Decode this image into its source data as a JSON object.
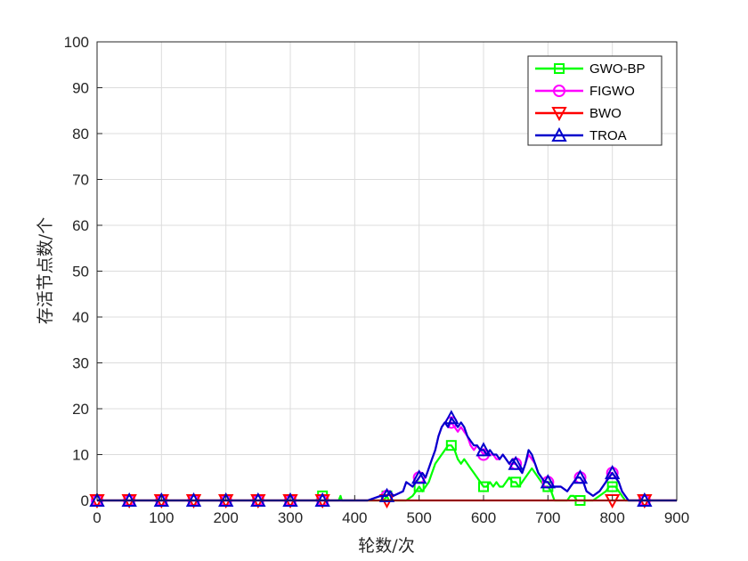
{
  "chart_data": {
    "type": "line",
    "title": "",
    "xlabel": "轮数/次",
    "ylabel": "存活节点数/个",
    "xlim": [
      0,
      900
    ],
    "ylim": [
      0,
      100
    ],
    "grid": true,
    "legend_position": "top-right",
    "x_ticks": [
      "0",
      "100",
      "200",
      "300",
      "400",
      "500",
      "600",
      "700",
      "800",
      "900"
    ],
    "y_ticks": [
      "0",
      "10",
      "20",
      "30",
      "40",
      "50",
      "60",
      "70",
      "80",
      "90",
      "100"
    ],
    "series": [
      {
        "name": "GWO-BP",
        "color": "#00ff00",
        "marker": "square",
        "x": [
          0,
          340,
          345,
          350,
          355,
          360,
          375,
          378,
          380,
          383,
          400,
          445,
          450,
          453,
          480,
          490,
          495,
          500,
          505,
          510,
          515,
          520,
          525,
          530,
          535,
          540,
          545,
          550,
          555,
          560,
          565,
          570,
          575,
          580,
          585,
          590,
          595,
          600,
          605,
          610,
          615,
          620,
          625,
          630,
          635,
          640,
          645,
          650,
          655,
          660,
          665,
          670,
          675,
          680,
          685,
          690,
          695,
          700,
          705,
          710,
          730,
          735,
          740,
          745,
          750,
          770,
          780,
          790,
          795,
          800,
          805,
          810,
          815,
          820,
          825,
          850,
          900
        ],
        "y": [
          0,
          0,
          1,
          1,
          1,
          0,
          0,
          1,
          0,
          0,
          0,
          0,
          1,
          0,
          0,
          1,
          2,
          3,
          2,
          3,
          4,
          6,
          8,
          9,
          10,
          11,
          12,
          12,
          11,
          9,
          8,
          9,
          8,
          7,
          6,
          5,
          4,
          3,
          3,
          4,
          3,
          4,
          3,
          3,
          4,
          5,
          4,
          4,
          3,
          4,
          5,
          6,
          7,
          6,
          5,
          4,
          3,
          3,
          2,
          0,
          0,
          1,
          1,
          0,
          0,
          0,
          1,
          2,
          3,
          3,
          3,
          2,
          1,
          0,
          0,
          0,
          0
        ]
      },
      {
        "name": "FIGWO",
        "color": "#ff00ff",
        "marker": "circle",
        "x": [
          0,
          420,
          440,
          450,
          455,
          460,
          475,
          480,
          490,
          495,
          500,
          505,
          510,
          515,
          520,
          525,
          530,
          535,
          540,
          545,
          550,
          555,
          560,
          565,
          570,
          575,
          580,
          585,
          590,
          595,
          600,
          605,
          610,
          615,
          620,
          625,
          630,
          635,
          640,
          645,
          650,
          655,
          660,
          665,
          670,
          675,
          680,
          685,
          690,
          695,
          700,
          705,
          710,
          720,
          730,
          735,
          740,
          745,
          750,
          755,
          760,
          770,
          780,
          790,
          795,
          800,
          805,
          810,
          815,
          820,
          825,
          850,
          900
        ],
        "y": [
          0,
          0,
          1,
          1,
          2,
          1,
          2,
          4,
          3,
          4,
          5,
          6,
          5,
          7,
          9,
          11,
          14,
          16,
          17,
          16,
          17,
          16,
          15,
          16,
          15,
          14,
          12,
          11,
          12,
          11,
          10,
          11,
          10,
          10,
          9,
          9,
          10,
          9,
          8,
          8,
          8,
          7,
          6,
          8,
          10,
          9,
          8,
          6,
          5,
          4,
          4,
          3,
          3,
          3,
          2,
          3,
          4,
          5,
          5,
          4,
          2,
          1,
          2,
          4,
          6,
          6,
          5,
          4,
          2,
          1,
          0,
          0,
          0
        ]
      },
      {
        "name": "BWO",
        "color": "#ff0000",
        "marker": "triangle-down",
        "x": [
          0,
          900
        ],
        "y": [
          0,
          0
        ]
      },
      {
        "name": "TROA",
        "color": "#0000cc",
        "marker": "triangle-up",
        "x": [
          0,
          420,
          440,
          450,
          455,
          460,
          475,
          480,
          490,
          495,
          500,
          505,
          510,
          515,
          520,
          525,
          530,
          535,
          540,
          545,
          550,
          555,
          560,
          565,
          570,
          575,
          580,
          585,
          590,
          595,
          600,
          605,
          610,
          615,
          620,
          625,
          630,
          635,
          640,
          645,
          650,
          655,
          660,
          665,
          670,
          675,
          680,
          685,
          690,
          695,
          700,
          705,
          710,
          720,
          730,
          735,
          740,
          745,
          750,
          755,
          760,
          770,
          780,
          790,
          795,
          800,
          805,
          810,
          815,
          820,
          825,
          850,
          900
        ],
        "y": [
          0,
          0,
          1,
          1,
          2,
          1,
          2,
          4,
          3,
          4,
          5,
          6,
          5,
          7,
          9,
          11,
          14,
          16,
          17,
          16,
          18,
          17,
          16,
          17,
          16,
          14,
          13,
          12,
          12,
          11,
          11,
          10,
          11,
          10,
          10,
          9,
          10,
          9,
          8,
          9,
          8,
          7,
          6,
          8,
          11,
          10,
          8,
          6,
          5,
          4,
          4,
          3,
          3,
          3,
          2,
          3,
          4,
          5,
          5,
          4,
          2,
          1,
          2,
          4,
          5,
          6,
          5,
          4,
          2,
          1,
          0,
          0,
          0
        ]
      }
    ]
  }
}
